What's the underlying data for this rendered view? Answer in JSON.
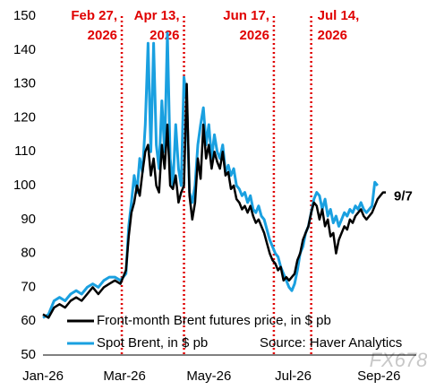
{
  "chart_data": {
    "type": "line",
    "x": [
      0,
      4,
      8,
      12,
      16,
      20,
      24,
      28,
      32,
      36,
      40,
      44,
      48,
      52,
      56,
      60,
      62,
      64,
      66,
      68,
      70,
      72,
      74,
      76,
      78,
      80,
      82,
      84,
      86,
      88,
      90,
      92,
      94,
      96,
      98,
      100,
      102,
      104,
      106,
      108,
      110,
      112,
      114,
      116,
      118,
      120,
      122,
      124,
      126,
      128,
      130,
      132,
      134,
      136,
      138,
      140,
      142,
      144,
      146,
      148,
      150,
      152,
      154,
      156,
      158,
      160,
      162,
      164,
      166,
      168,
      170,
      172,
      174,
      176,
      178,
      180,
      182,
      184,
      186,
      188,
      190,
      192,
      194,
      196,
      198,
      200,
      202,
      204,
      206,
      208,
      210,
      212,
      214,
      216,
      218,
      220,
      222,
      224,
      226,
      228,
      230,
      232,
      234,
      236,
      238,
      240,
      242,
      244,
      246,
      248
    ],
    "xlim": [
      0,
      270
    ],
    "xticks": [
      {
        "value": 0,
        "label": "Jan-26"
      },
      {
        "value": 59,
        "label": "Mar-26"
      },
      {
        "value": 120,
        "label": "May-26"
      },
      {
        "value": 181,
        "label": "Jul-26"
      },
      {
        "value": 243,
        "label": "Sep-26"
      }
    ],
    "ylim": [
      50,
      150
    ],
    "yticks": [
      50,
      60,
      70,
      80,
      90,
      100,
      110,
      120,
      130,
      140,
      150
    ],
    "series": [
      {
        "name": "Front-month Brent futures price, in $ pb",
        "color": "#000000",
        "values": [
          62,
          61,
          64,
          65,
          64,
          66,
          67,
          66,
          68,
          70,
          68,
          70,
          71,
          72,
          71,
          75,
          85,
          92,
          95,
          100,
          97,
          104,
          110,
          112,
          103,
          108,
          100,
          98,
          112,
          105,
          118,
          100,
          99,
          103,
          95,
          98,
          100,
          130,
          97,
          90,
          95,
          108,
          102,
          118,
          108,
          112,
          105,
          110,
          107,
          105,
          110,
          103,
          104,
          99,
          100,
          96,
          95,
          93,
          94,
          92,
          94,
          91,
          89,
          90,
          88,
          86,
          83,
          80,
          78,
          77,
          75,
          76,
          72,
          73,
          72,
          73,
          74,
          78,
          80,
          84,
          86,
          88,
          92,
          95,
          94,
          90,
          93,
          88,
          90,
          85,
          86,
          80,
          84,
          86,
          88,
          87,
          90,
          89,
          91,
          92,
          93,
          91,
          90,
          91,
          92,
          94,
          96,
          97,
          98,
          98
        ]
      },
      {
        "name": "Spot Brent, in $ pb",
        "color": "#1aa0e0",
        "values": [
          61,
          62,
          66,
          67,
          66,
          68,
          69,
          68,
          70,
          71,
          70,
          72,
          73,
          73,
          72,
          74,
          88,
          95,
          103,
          98,
          108,
          104,
          118,
          142,
          110,
          142,
          112,
          105,
          125,
          110,
          145,
          108,
          100,
          118,
          105,
          100,
          132,
          125,
          98,
          95,
          100,
          112,
          118,
          123,
          112,
          118,
          108,
          115,
          110,
          108,
          112,
          104,
          106,
          103,
          105,
          100,
          99,
          97,
          98,
          95,
          97,
          93,
          92,
          94,
          91,
          90,
          87,
          84,
          82,
          80,
          79,
          76,
          74,
          72,
          70,
          69,
          71,
          75,
          80,
          82,
          86,
          88,
          92,
          96,
          98,
          97,
          93,
          96,
          91,
          93,
          89,
          91,
          88,
          90,
          92,
          91,
          93,
          92,
          94,
          93,
          95,
          93,
          92,
          93,
          94,
          101,
          100,
          null,
          null,
          null
        ]
      }
    ],
    "events": [
      {
        "x": 57,
        "lines": [
          "Feb 27,",
          "2026"
        ]
      },
      {
        "x": 102,
        "lines": [
          "Apr 13,",
          "2026"
        ]
      },
      {
        "x": 167,
        "lines": [
          "Jun 17,",
          "2026"
        ]
      },
      {
        "x": 194,
        "lines": [
          "Jul 14,",
          "2026"
        ]
      }
    ],
    "event_color": "#e00000",
    "end_label": "9/7",
    "source": "Source: Haver Analytics",
    "watermark": "FX678"
  }
}
